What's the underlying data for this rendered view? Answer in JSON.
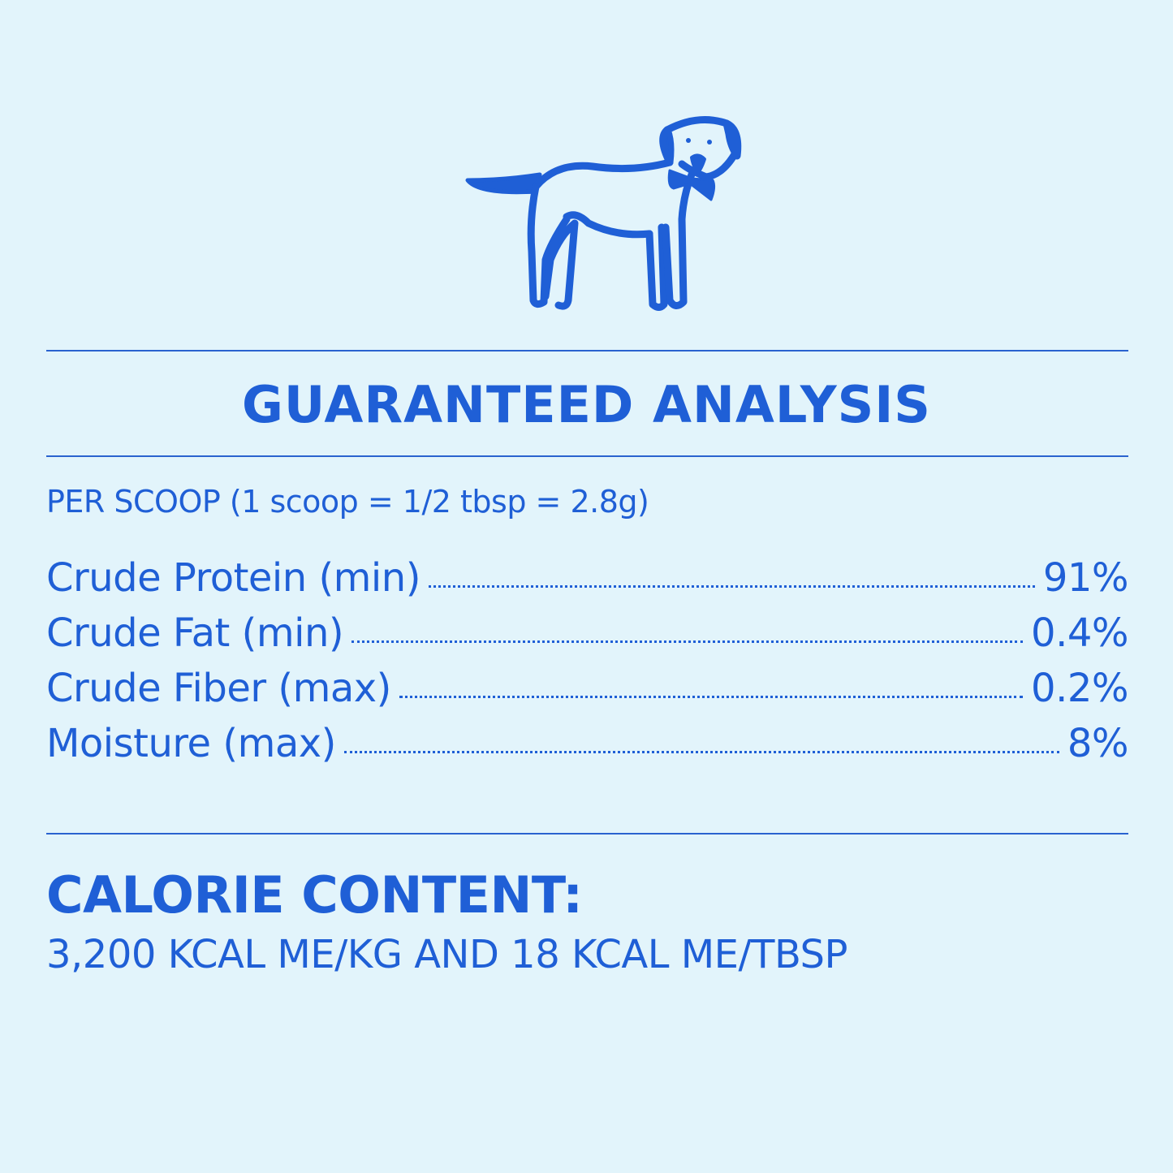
{
  "colors": {
    "background": "#e2f4fb",
    "accent": "#1f5fd6"
  },
  "illustration": {
    "icon": "dog-with-bowtie-icon"
  },
  "analysis": {
    "title": "GUARANTEED ANALYSIS",
    "serving": "PER SCOOP (1 scoop = 1/2 tbsp = 2.8g)",
    "rows": [
      {
        "label": "Crude Protein (min)",
        "value": "91%"
      },
      {
        "label": "Crude Fat (min)",
        "value": "0.4%"
      },
      {
        "label": "Crude Fiber (max)",
        "value": "0.2%"
      },
      {
        "label": "Moisture (max)",
        "value": "8%"
      }
    ]
  },
  "calories": {
    "title": "CALORIE CONTENT:",
    "text": "3,200 KCAL ME/KG AND 18 KCAL ME/TBSP"
  }
}
